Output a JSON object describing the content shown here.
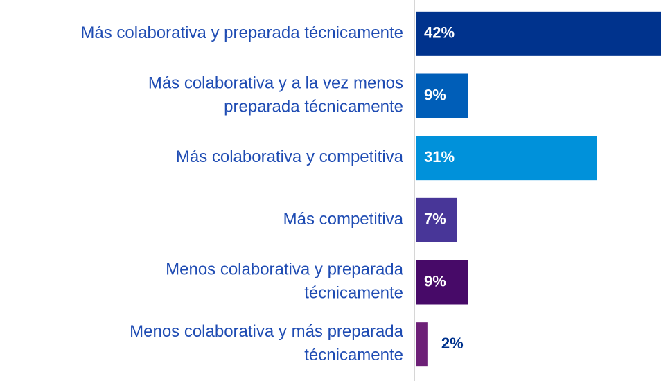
{
  "chart_data": {
    "type": "bar",
    "orientation": "horizontal",
    "categories": [
      "Más colaborativa y preparada técnicamente",
      "Más colaborativa y a la vez menos\npreparada técnicamente",
      "Más colaborativa y competitiva",
      "Más competitiva",
      "Menos colaborativa y preparada\ntécnicamente",
      "Menos colaborativa y más preparada\ntécnicamente"
    ],
    "values": [
      42,
      9,
      31,
      7,
      9,
      2
    ],
    "value_labels": [
      "42%",
      "9%",
      "31%",
      "7%",
      "9%",
      "2%"
    ],
    "colors": [
      "#00338d",
      "#005eb8",
      "#0091da",
      "#483698",
      "#470a68",
      "#6d2077"
    ],
    "xlim": [
      0,
      42
    ],
    "grid": false
  }
}
